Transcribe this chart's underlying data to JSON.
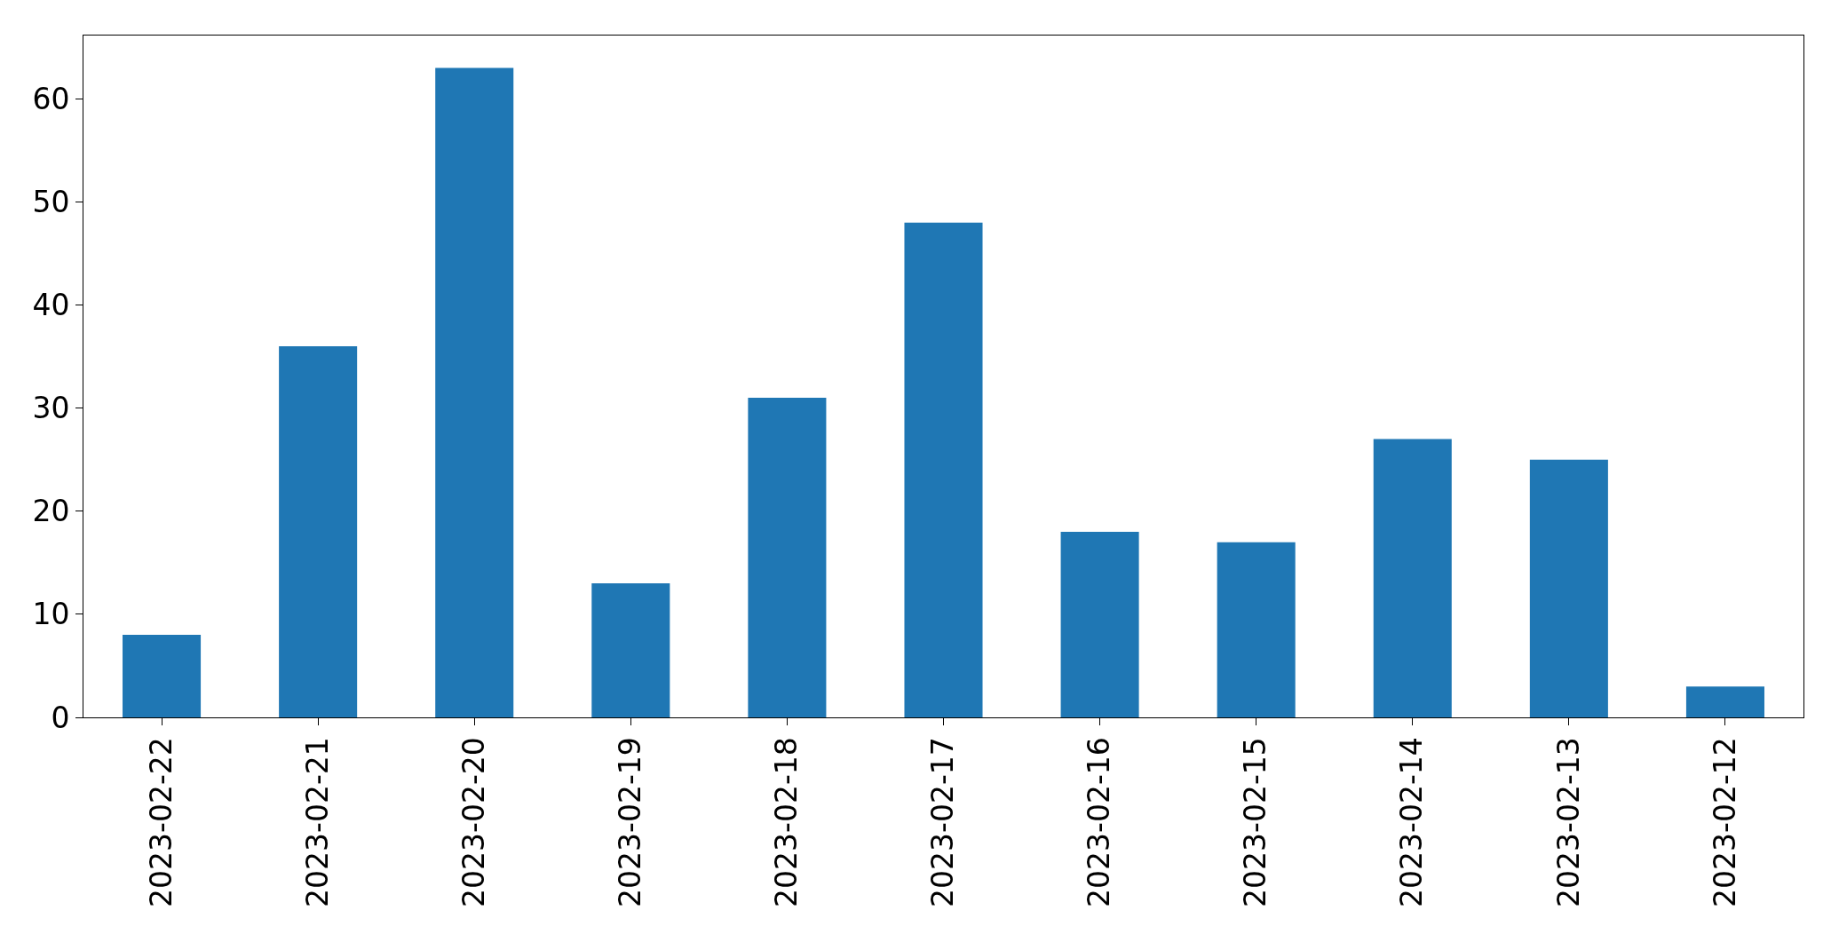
{
  "chart_data": {
    "type": "bar",
    "categories": [
      "2023-02-22",
      "2023-02-21",
      "2023-02-20",
      "2023-02-19",
      "2023-02-18",
      "2023-02-17",
      "2023-02-16",
      "2023-02-15",
      "2023-02-14",
      "2023-02-13",
      "2023-02-12"
    ],
    "values": [
      8,
      36,
      63,
      13,
      31,
      48,
      18,
      17,
      27,
      25,
      3
    ],
    "color": "#1f77b4",
    "ylim": [
      0,
      66.15
    ],
    "yticks": [
      0,
      10,
      20,
      30,
      40,
      50,
      60
    ]
  }
}
